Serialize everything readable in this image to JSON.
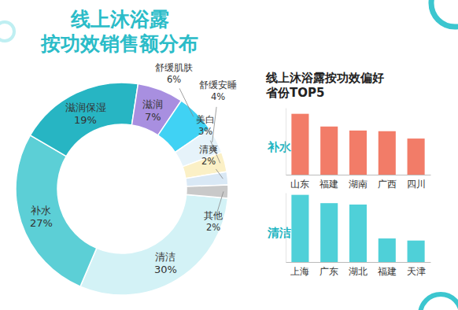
{
  "chart_data": [
    {
      "type": "pie",
      "title": [
        "线上沐浴露",
        "按功效销售额分布"
      ],
      "categories": [
        "清洁",
        "补水",
        "滋润保湿",
        "滋润",
        "舒缓肌肤",
        "舒缓安睡",
        "美白",
        "清爽",
        "其他"
      ],
      "values": [
        30,
        27,
        19,
        7,
        6,
        4,
        3,
        2,
        2
      ],
      "value_labels": [
        "30%",
        "27%",
        "19%",
        "7%",
        "6%",
        "4%",
        "3%",
        "2%",
        "2%"
      ],
      "colors": [
        "#d3f2f6",
        "#5ccfd6",
        "#27b5c3",
        "#a88fe0",
        "#40d2f4",
        "#e6f3fa",
        "#fbf0c6",
        "#d9e8f5",
        "#c9c9c9"
      ],
      "data_labels": true
    },
    {
      "type": "bar",
      "title": [
        "线上沐浴露按功效偏好",
        "省份TOP5"
      ],
      "categories": [
        "山东",
        "福建",
        "湖南",
        "广西",
        "四川"
      ],
      "series": [
        {
          "name": "补水",
          "color": "#f27c68",
          "values": [
            91,
            72,
            66,
            65,
            54
          ]
        }
      ],
      "ylim": [
        0,
        100
      ],
      "tick_labels": "x"
    },
    {
      "type": "bar",
      "categories": [
        "上海",
        "广东",
        "湖北",
        "福建",
        "天津"
      ],
      "series": [
        {
          "name": "清洁",
          "color": "#4fd0d8",
          "values": [
            97,
            85,
            83,
            34,
            31
          ]
        }
      ],
      "ylim": [
        0,
        100
      ],
      "tick_labels": "x"
    }
  ]
}
